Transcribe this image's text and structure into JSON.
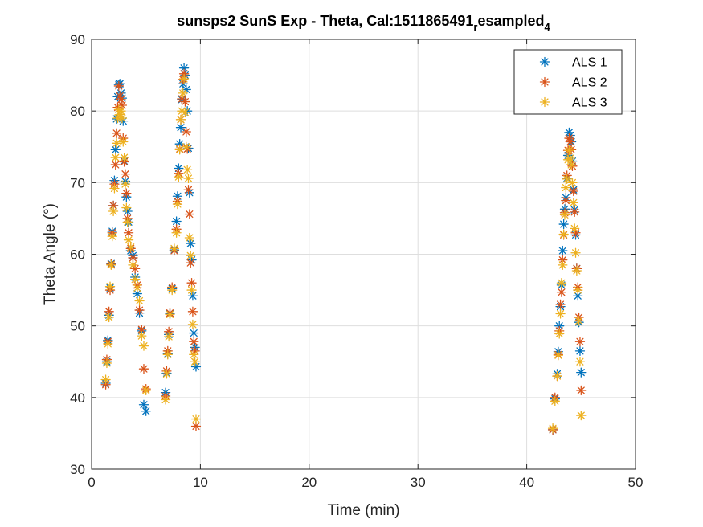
{
  "chart_data": {
    "type": "scatter",
    "title": "sunsps2 SunS Exp - Theta, Cal:1511865491",
    "title_sub": "r",
    "title_mid": "esampled",
    "title_sub2": "4",
    "xlabel": "Time (min)",
    "ylabel": "Theta Angle (°)",
    "xlim": [
      0,
      50
    ],
    "ylim": [
      30,
      90
    ],
    "xticks": [
      0,
      10,
      20,
      30,
      40,
      50
    ],
    "yticks": [
      30,
      40,
      50,
      60,
      70,
      80,
      90
    ],
    "grid": true,
    "legend_position": "top-right",
    "marker": "asterisk",
    "series": [
      {
        "name": "ALS 1",
        "color": "#0072BD",
        "x": [
          1.3,
          1.4,
          1.5,
          1.6,
          1.7,
          1.8,
          1.9,
          2.0,
          2.1,
          2.2,
          2.3,
          2.4,
          2.5,
          2.6,
          2.7,
          2.8,
          2.9,
          3.0,
          3.1,
          3.2,
          3.3,
          3.4,
          3.6,
          3.8,
          4.0,
          4.2,
          4.4,
          4.6,
          4.8,
          5.0,
          6.8,
          6.9,
          7.0,
          7.1,
          7.2,
          7.4,
          7.6,
          7.8,
          7.9,
          8.0,
          8.1,
          8.2,
          8.3,
          8.4,
          8.5,
          8.6,
          8.7,
          8.8,
          8.9,
          9.0,
          9.1,
          9.2,
          9.3,
          9.4,
          9.5,
          9.6,
          42.4,
          42.6,
          42.8,
          42.9,
          43.0,
          43.1,
          43.2,
          43.3,
          43.4,
          43.5,
          43.6,
          43.7,
          43.8,
          43.9,
          44.0,
          44.1,
          44.2,
          44.3,
          44.4,
          44.5,
          44.6,
          44.7,
          44.8,
          44.9,
          45.0
        ],
        "y": [
          42,
          45,
          48,
          51.5,
          55.3,
          58.7,
          63.2,
          66.8,
          70.3,
          74.6,
          78.9,
          82,
          83.7,
          83.8,
          82.5,
          81.8,
          78.6,
          73,
          70.2,
          68,
          66,
          64.5,
          60.5,
          59.8,
          56.8,
          54.5,
          51.8,
          49.3,
          39,
          38.1,
          40.7,
          43.4,
          46.1,
          48.8,
          51.7,
          55.2,
          60.6,
          64.6,
          68.1,
          72,
          75.4,
          77.7,
          81.6,
          83.8,
          86,
          85,
          83,
          80,
          74.8,
          68.6,
          61.5,
          59.2,
          54.2,
          49,
          47,
          44.3,
          35.5,
          39.8,
          43.3,
          46.4,
          50,
          52.7,
          55.7,
          60.5,
          64.2,
          66.3,
          67.9,
          70.6,
          73.8,
          77,
          76.6,
          75.7,
          73,
          69,
          66.2,
          62.7,
          58,
          54.2,
          50.5,
          46.5,
          43.5
        ]
      },
      {
        "name": "ALS 2",
        "color": "#D95319",
        "x": [
          1.3,
          1.4,
          1.5,
          1.6,
          1.7,
          1.8,
          1.9,
          2.0,
          2.1,
          2.2,
          2.3,
          2.4,
          2.5,
          2.6,
          2.7,
          2.8,
          2.9,
          3.0,
          3.1,
          3.2,
          3.3,
          3.4,
          3.6,
          3.8,
          4.0,
          4.2,
          4.4,
          4.6,
          4.8,
          5.0,
          6.8,
          6.9,
          7.0,
          7.1,
          7.2,
          7.4,
          7.6,
          7.8,
          7.9,
          8.0,
          8.1,
          8.2,
          8.3,
          8.4,
          8.5,
          8.6,
          8.7,
          8.8,
          8.9,
          9.0,
          9.1,
          9.2,
          9.3,
          9.4,
          9.5,
          9.6,
          42.4,
          42.6,
          42.8,
          42.9,
          43.0,
          43.1,
          43.2,
          43.3,
          43.4,
          43.5,
          43.6,
          43.7,
          43.8,
          43.9,
          44.0,
          44.1,
          44.2,
          44.3,
          44.4,
          44.5,
          44.6,
          44.7,
          44.8,
          44.9,
          45.0
        ],
        "y": [
          41.8,
          45.3,
          47.8,
          52,
          55,
          58.6,
          63,
          66.8,
          69.8,
          72.5,
          76.9,
          80.5,
          83.5,
          82.1,
          81.6,
          80.8,
          76.2,
          72.9,
          71.2,
          68.5,
          65,
          63,
          60.8,
          59.5,
          58,
          55.7,
          52.2,
          49.5,
          44,
          41.2,
          40.2,
          43.7,
          46.5,
          49.2,
          51.8,
          55.4,
          60.5,
          63.5,
          67.4,
          71.3,
          74.7,
          78.8,
          81.7,
          84.4,
          85.2,
          81.3,
          77.1,
          74.7,
          69,
          65.6,
          58.8,
          56,
          52,
          47.8,
          46.5,
          36,
          35.5,
          40,
          43,
          46,
          49.3,
          53,
          54.7,
          59.2,
          62.7,
          65.8,
          67.5,
          71,
          74.5,
          76.2,
          75.7,
          74.6,
          72.3,
          68.8,
          65.9,
          63,
          58,
          55.4,
          51.2,
          47.8,
          41
        ]
      },
      {
        "name": "ALS 3",
        "color": "#EDB120",
        "x": [
          1.3,
          1.4,
          1.5,
          1.6,
          1.7,
          1.8,
          1.9,
          2.0,
          2.1,
          2.2,
          2.3,
          2.4,
          2.5,
          2.6,
          2.7,
          2.8,
          2.9,
          3.0,
          3.1,
          3.2,
          3.3,
          3.4,
          3.6,
          3.8,
          4.0,
          4.2,
          4.4,
          4.6,
          4.8,
          5.0,
          6.8,
          6.9,
          7.0,
          7.1,
          7.2,
          7.4,
          7.6,
          7.8,
          7.9,
          8.0,
          8.1,
          8.2,
          8.3,
          8.4,
          8.5,
          8.6,
          8.7,
          8.8,
          8.9,
          9.0,
          9.1,
          9.2,
          9.3,
          9.4,
          9.5,
          9.6,
          42.4,
          42.6,
          42.8,
          42.9,
          43.0,
          43.1,
          43.2,
          43.3,
          43.4,
          43.5,
          43.6,
          43.7,
          43.8,
          43.9,
          44.0,
          44.1,
          44.2,
          44.3,
          44.4,
          44.5,
          44.6,
          44.7,
          44.8,
          44.9,
          45.0
        ],
        "y": [
          42.5,
          44.8,
          47.5,
          51.2,
          55.5,
          58.5,
          62.5,
          66,
          69.2,
          73.5,
          75.5,
          79,
          80.2,
          79.5,
          80,
          79,
          75.7,
          73.5,
          69.8,
          66.5,
          64.5,
          62,
          61,
          58.5,
          56.5,
          55.3,
          53.5,
          48.6,
          47.2,
          41,
          39.7,
          43.3,
          46,
          48.5,
          51.6,
          55,
          60.8,
          63,
          67,
          70.8,
          74.6,
          78.8,
          80,
          82.5,
          84.5,
          79.8,
          75,
          71.8,
          70.6,
          62.3,
          59.8,
          55,
          50.2,
          46,
          45,
          37,
          35.7,
          39.5,
          43,
          45.9,
          48.9,
          51.7,
          56,
          58.5,
          62.8,
          65.5,
          69.3,
          70.5,
          73.2,
          74.5,
          73.4,
          72.5,
          70,
          67.2,
          63.6,
          60.2,
          57.7,
          55,
          50.7,
          45,
          37.5
        ]
      }
    ]
  }
}
